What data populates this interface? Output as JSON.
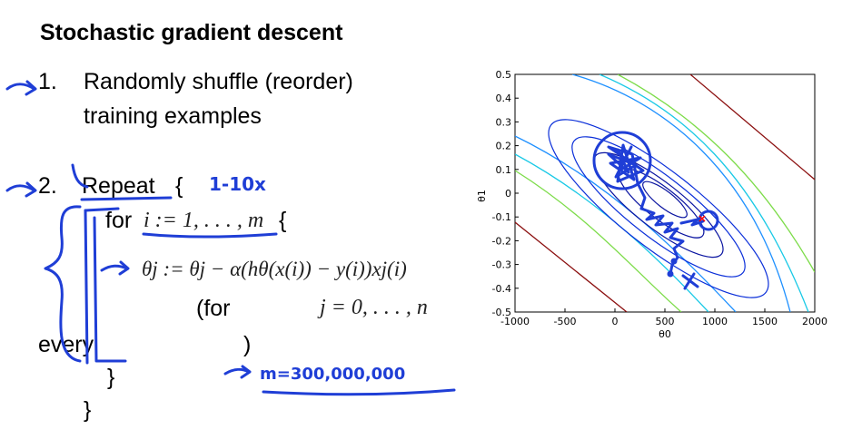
{
  "slide": {
    "title": "Stochastic gradient descent",
    "step1_num": "1.",
    "step1_line1": "Randomly shuffle (reorder)",
    "step1_line2": "training examples",
    "step2_num": "2.",
    "repeat_word": "Repeat",
    "repeat_brace": "{",
    "for_word": "for",
    "for_range": "i := 1, . . . , m",
    "for_brace": "{",
    "update_rule": "θj := θj − α(hθ(x(i)) − y(i))xj(i)",
    "for_j_word": "(for",
    "for_j_range": "j = 0, . . . , n",
    "every_word": "every",
    "close_paren": ")",
    "inner_close": "}",
    "outer_close": "}"
  },
  "handwriting": {
    "epochs_note": "1-10x",
    "m_note": "m=300,000,000",
    "ink_color": "#1f3ed6"
  },
  "chart_data": {
    "type": "contour",
    "xlabel": "θ0",
    "ylabel": "θ1",
    "xlim": [
      -1000,
      2000
    ],
    "ylim": [
      -0.5,
      0.5
    ],
    "x_ticks": [
      "-1000",
      "-500",
      "0",
      "500",
      "1000",
      "1500",
      "2000"
    ],
    "y_ticks": [
      "0.5",
      "0.4",
      "0.3",
      "0.2",
      "0.1",
      "0",
      "-0.1",
      "-0.2",
      "-0.3",
      "-0.4",
      "-0.5"
    ],
    "contour_colors": [
      "#0a14a0",
      "#0b2fd9",
      "#1e90ff",
      "#19c9e6",
      "#7ddc4a",
      "#8b0f0f"
    ],
    "minimum_marker": {
      "x": 900,
      "y": -0.12,
      "color": "#ff0000"
    },
    "grid": false
  }
}
